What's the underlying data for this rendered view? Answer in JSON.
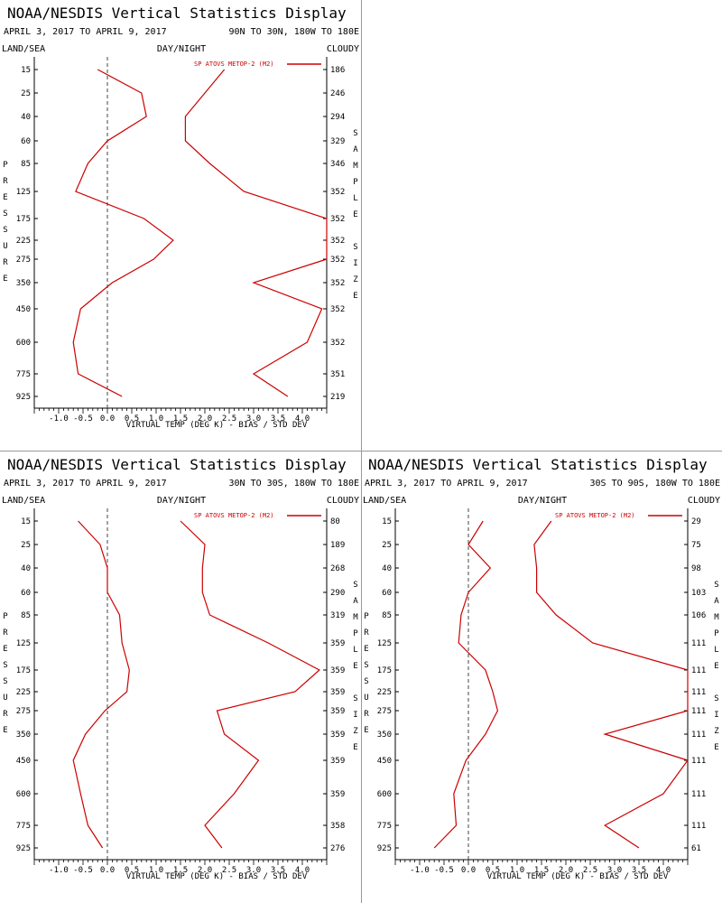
{
  "panels": [
    {
      "title": "NOAA/NESDIS Vertical Statistics Display",
      "date_range": "APRIL 3, 2017 TO APRIL 9, 2017",
      "region": "90N TO 30N, 180W TO 180E",
      "land_sea": "LAND/SEA",
      "day_night": "DAY/NIGHT",
      "cloudy": "CLOUDY",
      "legend": "SP ATOVS METOP-2 (M2)",
      "xlabel": "VIRTUAL TEMP (DEG K) - BIAS / STD DEV",
      "ylabel_left": "PRESSURE",
      "ylabel_right": "SAMPLE SIZE"
    },
    {
      "title": "NOAA/NESDIS Vertical Statistics Display",
      "date_range": "APRIL 3, 2017 TO APRIL 9, 2017",
      "region": "30N TO 30S, 180W TO 180E",
      "land_sea": "LAND/SEA",
      "day_night": "DAY/NIGHT",
      "cloudy": "CLOUDY",
      "legend": "SP ATOVS METOP-2 (M2)",
      "xlabel": "VIRTUAL TEMP (DEG K) - BIAS / STD DEV",
      "ylabel_left": "PRESSURE",
      "ylabel_right": "SAMPLE SIZE"
    },
    {
      "title": "NOAA/NESDIS Vertical Statistics Display",
      "date_range": "APRIL 3, 2017 TO APRIL 9, 2017",
      "region": "30S TO 90S, 180W TO 180E",
      "land_sea": "LAND/SEA",
      "day_night": "DAY/NIGHT",
      "cloudy": "CLOUDY",
      "legend": "SP ATOVS METOP-2 (M2)",
      "xlabel": "VIRTUAL TEMP (DEG K) - BIAS / STD DEV",
      "ylabel_left": "PRESSURE",
      "ylabel_right": "SAMPLE SIZE"
    }
  ],
  "chart_data": [
    {
      "type": "line",
      "pressure_levels": [
        "15",
        "25",
        "40",
        "60",
        "85",
        "125",
        "175",
        "225",
        "275",
        "350",
        "450",
        "600",
        "775",
        "925"
      ],
      "x_ticks": [
        "-1.0",
        "-0.5",
        "0.0",
        "0.5",
        "1.0",
        "1.5",
        "2.0",
        "2.5",
        "3.0",
        "3.5",
        "4.0"
      ],
      "xlim": [
        -1.5,
        4.5
      ],
      "series": [
        {
          "name": "SP ATOVS METOP-2 (M2)",
          "kind": "bias",
          "values": [
            -0.2,
            0.7,
            0.8,
            0.0,
            -0.4,
            -0.65,
            0.75,
            1.35,
            0.95,
            0.1,
            -0.55,
            -0.7,
            -0.6,
            0.3
          ]
        },
        {
          "name": "SP ATOVS METOP-2 (M2)",
          "kind": "std_dev",
          "values": [
            2.4,
            2.0,
            1.6,
            1.6,
            2.1,
            2.8,
            4.5,
            4.7,
            4.5,
            3.0,
            4.4,
            4.1,
            3.0,
            3.7
          ]
        }
      ],
      "sample_size": [
        "186",
        "246",
        "294",
        "329",
        "346",
        "352",
        "352",
        "352",
        "352",
        "352",
        "352",
        "352",
        "351",
        "219"
      ],
      "color": "#cc0000"
    },
    {
      "type": "line",
      "pressure_levels": [
        "15",
        "25",
        "40",
        "60",
        "85",
        "125",
        "175",
        "225",
        "275",
        "350",
        "450",
        "600",
        "775",
        "925"
      ],
      "x_ticks": [
        "-1.0",
        "-0.5",
        "0.0",
        "0.5",
        "1.0",
        "1.5",
        "2.0",
        "2.5",
        "3.0",
        "3.5",
        "4.0"
      ],
      "xlim": [
        -1.5,
        4.5
      ],
      "series": [
        {
          "name": "SP ATOVS METOP-2 (M2)",
          "kind": "bias",
          "values": [
            -0.6,
            -0.15,
            0.0,
            0.0,
            0.25,
            0.3,
            0.45,
            0.4,
            -0.05,
            -0.45,
            -0.7,
            -0.55,
            -0.4,
            -0.1
          ]
        },
        {
          "name": "SP ATOVS METOP-2 (M2)",
          "kind": "std_dev",
          "values": [
            1.5,
            2.0,
            1.95,
            1.95,
            2.1,
            3.3,
            4.35,
            3.85,
            2.25,
            2.4,
            3.1,
            2.6,
            2.0,
            2.35
          ]
        }
      ],
      "sample_size": [
        "80",
        "189",
        "268",
        "290",
        "319",
        "359",
        "359",
        "359",
        "359",
        "359",
        "359",
        "359",
        "358",
        "276"
      ],
      "color": "#cc0000"
    },
    {
      "type": "line",
      "pressure_levels": [
        "15",
        "25",
        "40",
        "60",
        "85",
        "125",
        "175",
        "225",
        "275",
        "350",
        "450",
        "600",
        "775",
        "925"
      ],
      "x_ticks": [
        "-1.0",
        "-0.5",
        "0.0",
        "0.5",
        "1.0",
        "1.5",
        "2.0",
        "2.5",
        "3.0",
        "3.5",
        "4.0"
      ],
      "xlim": [
        -1.5,
        4.5
      ],
      "series": [
        {
          "name": "SP ATOVS METOP-2 (M2)",
          "kind": "bias",
          "values": [
            0.3,
            0.0,
            0.45,
            0.0,
            -0.15,
            -0.2,
            0.35,
            0.5,
            0.6,
            0.35,
            -0.05,
            -0.3,
            -0.25,
            -0.7
          ]
        },
        {
          "name": "SP ATOVS METOP-2 (M2)",
          "kind": "std_dev",
          "values": [
            1.7,
            1.35,
            1.4,
            1.4,
            1.8,
            2.55,
            4.5,
            4.7,
            4.5,
            2.8,
            4.5,
            4.0,
            2.8,
            3.5
          ]
        }
      ],
      "sample_size": [
        "29",
        "75",
        "98",
        "103",
        "106",
        "111",
        "111",
        "111",
        "111",
        "111",
        "111",
        "111",
        "111",
        "61"
      ],
      "color": "#cc0000"
    }
  ]
}
